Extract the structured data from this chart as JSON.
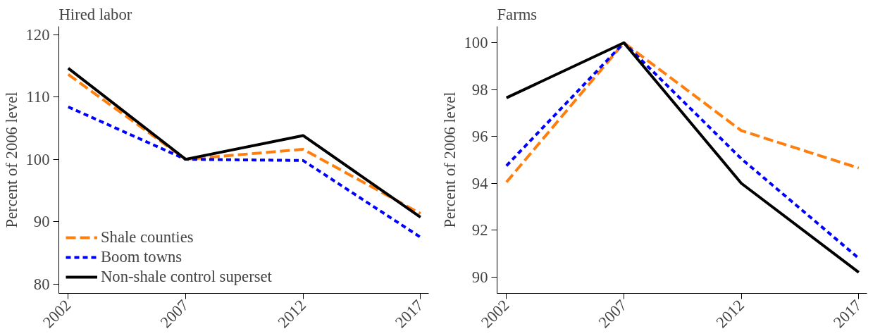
{
  "chart_data": [
    {
      "type": "line",
      "title": "Hired labor",
      "ylabel": "Percent of 2006 level",
      "x": [
        2002,
        2007,
        2012,
        2017
      ],
      "xlim": [
        2001.6,
        2017.35
      ],
      "xticks": [
        2002,
        2007,
        2012,
        2017
      ],
      "ylim": [
        78.5,
        121.3
      ],
      "yticks": [
        80,
        90,
        100,
        110,
        120
      ],
      "grid": false,
      "legend": "bottom left",
      "marker": "none",
      "series": [
        {
          "name": "Shale counties",
          "color": "#ff7f0e",
          "line_style": "dashed",
          "values": [
            113.6,
            100,
            101.6,
            91.3
          ]
        },
        {
          "name": "Boom towns",
          "color": "#0000ff",
          "line_style": "dotted",
          "values": [
            108.4,
            100,
            99.8,
            87.5
          ]
        },
        {
          "name": "Non-shale control superset",
          "color": "#000000",
          "line_style": "solid",
          "values": [
            114.6,
            100,
            103.8,
            90.7
          ]
        }
      ]
    },
    {
      "type": "line",
      "title": "Farms",
      "ylabel": "Percent of 2006 level",
      "x": [
        2002,
        2007,
        2012,
        2017
      ],
      "xlim": [
        2001.6,
        2017.35
      ],
      "xticks": [
        2002,
        2007,
        2012,
        2017
      ],
      "ylim": [
        89.3,
        100.7
      ],
      "yticks": [
        90,
        92,
        94,
        96,
        98,
        100
      ],
      "grid": false,
      "marker": "none",
      "series": [
        {
          "color": "#ff7f0e",
          "line_style": "dashed",
          "values": [
            94.05,
            100,
            96.25,
            94.65
          ]
        },
        {
          "color": "#0000ff",
          "line_style": "dotted",
          "values": [
            94.75,
            100,
            95.05,
            90.8
          ]
        },
        {
          "color": "#000000",
          "line_style": "solid",
          "values": [
            97.65,
            100,
            94.0,
            90.2
          ]
        }
      ]
    }
  ]
}
